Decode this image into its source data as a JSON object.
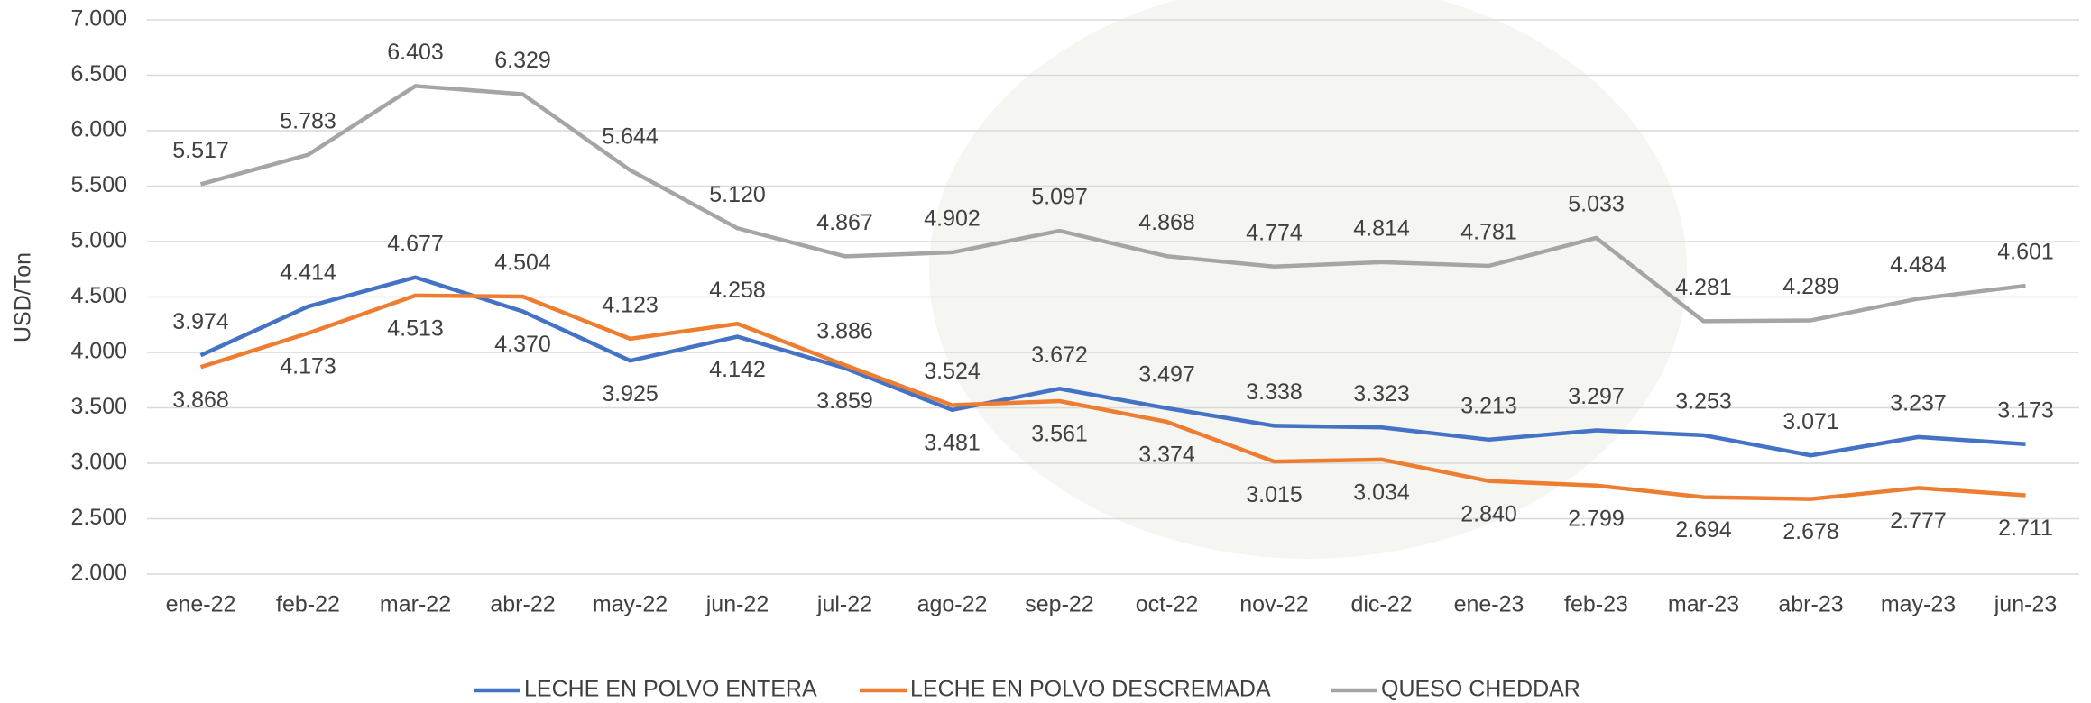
{
  "chart_data": {
    "type": "line",
    "y_label": "USD/Ton",
    "categories": [
      "ene-22",
      "feb-22",
      "mar-22",
      "abr-22",
      "may-22",
      "jun-22",
      "jul-22",
      "ago-22",
      "sep-22",
      "oct-22",
      "nov-22",
      "dic-22",
      "ene-23",
      "feb-23",
      "mar-23",
      "abr-23",
      "may-23",
      "jun-23"
    ],
    "series": [
      {
        "name": "LECHE EN POLVO ENTERA",
        "color": "#4472c4",
        "values": [
          3974,
          4414,
          4677,
          4370,
          3925,
          4142,
          3859,
          3481,
          3672,
          3497,
          3338,
          3323,
          3213,
          3297,
          3253,
          3071,
          3237,
          3173
        ],
        "value_labels": [
          "3.974",
          "4.414",
          "4.677",
          "4.370",
          "3.925",
          "4.142",
          "3.859",
          "3.481",
          "3.672",
          "3.497",
          "3.338",
          "3.323",
          "3.213",
          "3.297",
          "3.253",
          "3.071",
          "3.237",
          "3.173"
        ]
      },
      {
        "name": "LECHE EN POLVO DESCREMADA",
        "color": "#ed7d31",
        "values": [
          3868,
          4173,
          4513,
          4504,
          4123,
          4258,
          3886,
          3524,
          3561,
          3374,
          3015,
          3034,
          2840,
          2799,
          2694,
          2678,
          2777,
          2711
        ],
        "value_labels": [
          "3.868",
          "4.173",
          "4.513",
          "4.504",
          "4.123",
          "4.258",
          "3.886",
          "3.524",
          "3.561",
          "3.374",
          "3.015",
          "3.034",
          "2.840",
          "2.799",
          "2.694",
          "2.678",
          "2.777",
          "2.711"
        ]
      },
      {
        "name": "QUESO CHEDDAR",
        "color": "#a5a5a5",
        "values": [
          5517,
          5783,
          6403,
          6329,
          5644,
          5120,
          4867,
          4902,
          5097,
          4868,
          4774,
          4814,
          4781,
          5033,
          4281,
          4289,
          4484,
          4601
        ],
        "value_labels": [
          "5.517",
          "5.783",
          "6.403",
          "6.329",
          "5.644",
          "5.120",
          "4.867",
          "4.902",
          "5.097",
          "4.868",
          "4.774",
          "4.814",
          "4.781",
          "5.033",
          "4.281",
          "4.289",
          "4.484",
          "4.601"
        ]
      }
    ],
    "ylim": [
      2000,
      7000
    ],
    "yticks": [
      {
        "value": 2000,
        "label": "2.000"
      },
      {
        "value": 2500,
        "label": "2.500"
      },
      {
        "value": 3000,
        "label": "3.000"
      },
      {
        "value": 3500,
        "label": "3.500"
      },
      {
        "value": 4000,
        "label": "4.000"
      },
      {
        "value": 4500,
        "label": "4.500"
      },
      {
        "value": 5000,
        "label": "5.000"
      },
      {
        "value": 5500,
        "label": "5.500"
      },
      {
        "value": 6000,
        "label": "6.000"
      },
      {
        "value": 6500,
        "label": "6.500"
      },
      {
        "value": 7000,
        "label": "7.000"
      }
    ],
    "grid": true,
    "legend": "bottom"
  }
}
